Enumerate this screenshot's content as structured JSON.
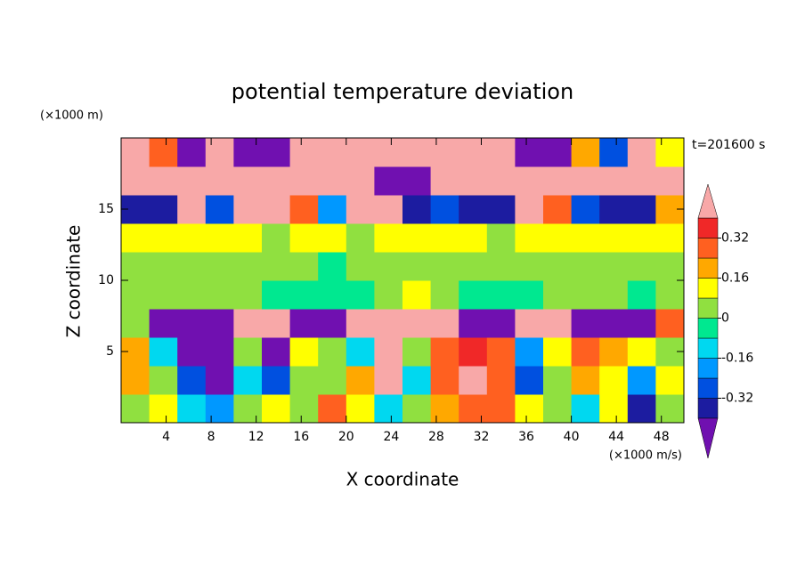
{
  "chart_data": {
    "type": "contourf",
    "title": "potential temperature deviation",
    "x_label": "X coordinate",
    "y_label": "Z coordinate",
    "y_unit": "(×1000 m)",
    "x_unit": "(×1000 m/s)",
    "time_label": "t=201600 s",
    "xlim": [
      0,
      50
    ],
    "ylim": [
      0,
      20
    ],
    "xticks": [
      4,
      8,
      12,
      16,
      20,
      24,
      28,
      32,
      36,
      40,
      44,
      48
    ],
    "yticks": [
      5,
      10,
      15
    ],
    "levels": [
      -0.4,
      -0.32,
      -0.24,
      -0.16,
      -0.08,
      0,
      0.08,
      0.16,
      0.24,
      0.32,
      0.4
    ],
    "colors": [
      "#7010b0",
      "#1c1ca0",
      "#0050e0",
      "#0098ff",
      "#00d8f0",
      "#00e890",
      "#90e040",
      "#ffff00",
      "#ffa800",
      "#ff6020",
      "#f02828",
      "#f8a8a8"
    ],
    "colorbar_ticks": [
      -0.32,
      -0.16,
      0,
      0.16,
      0.32
    ],
    "z": [
      [
        0,
        0.1,
        -0.1,
        -0.2,
        0,
        0.1,
        0.05,
        0.3,
        0.1,
        -0.1,
        0.05,
        0.2,
        0.3,
        0.25,
        0.1,
        0,
        -0.1,
        0.1,
        -0.35,
        0
      ],
      [
        0.2,
        0,
        -0.3,
        -0.45,
        -0.1,
        -0.3,
        0,
        0,
        0.2,
        0.45,
        -0.1,
        0.25,
        0.4,
        0.3,
        -0.3,
        0,
        0.2,
        0.1,
        -0.2,
        0.1
      ],
      [
        0.2,
        -0.1,
        -0.45,
        -0.45,
        0.05,
        -0.45,
        0.1,
        0,
        -0.1,
        0.45,
        0,
        0.3,
        0.35,
        0.25,
        -0.2,
        0.1,
        0.3,
        0.2,
        0.1,
        0.05
      ],
      [
        0,
        -0.5,
        -0.5,
        -0.5,
        0.5,
        0.5,
        -0.5,
        -0.5,
        0.5,
        0.5,
        0.5,
        0.5,
        -0.5,
        -0.5,
        0.5,
        0.5,
        -0.5,
        -0.5,
        -0.5,
        0.3
      ],
      [
        0.05,
        0.05,
        0.05,
        0,
        0,
        -0.05,
        -0.05,
        -0.05,
        -0.05,
        0.05,
        0.1,
        0.05,
        -0.05,
        -0.05,
        -0.05,
        0,
        0,
        0.05,
        -0.05,
        0.05
      ],
      [
        0.05,
        0.05,
        0.05,
        0,
        0,
        0.02,
        0,
        -0.02,
        0.02,
        0.05,
        0.05,
        0.02,
        0,
        0.02,
        0,
        0.05,
        0.05,
        0.05,
        0.02,
        0.05
      ],
      [
        0.15,
        0.12,
        0.1,
        0.1,
        0.08,
        0.05,
        0.1,
        0.1,
        0.05,
        0.1,
        0.08,
        0.1,
        0.1,
        0.05,
        0.1,
        0.12,
        0.1,
        0.1,
        0.12,
        0.15
      ],
      [
        -0.4,
        -0.35,
        0.45,
        -0.3,
        0.5,
        0.45,
        0.3,
        -0.2,
        0.4,
        0.5,
        -0.35,
        -0.3,
        -0.4,
        -0.35,
        0.4,
        0.3,
        -0.3,
        -0.35,
        -0.4,
        0.2
      ],
      [
        0.5,
        0.5,
        0.5,
        0.5,
        0.5,
        0.5,
        0.5,
        0.5,
        0.45,
        -0.45,
        -0.5,
        0.5,
        0.5,
        0.5,
        0.5,
        0.45,
        0.5,
        0.5,
        0.45,
        0.5
      ],
      [
        0.5,
        0.3,
        -0.5,
        0.5,
        -0.45,
        -0.5,
        0.5,
        0.5,
        0.5,
        0.5,
        0.5,
        0.5,
        0.5,
        0.5,
        -0.5,
        -0.5,
        0.2,
        -0.3,
        0.5,
        0.1
      ]
    ]
  }
}
